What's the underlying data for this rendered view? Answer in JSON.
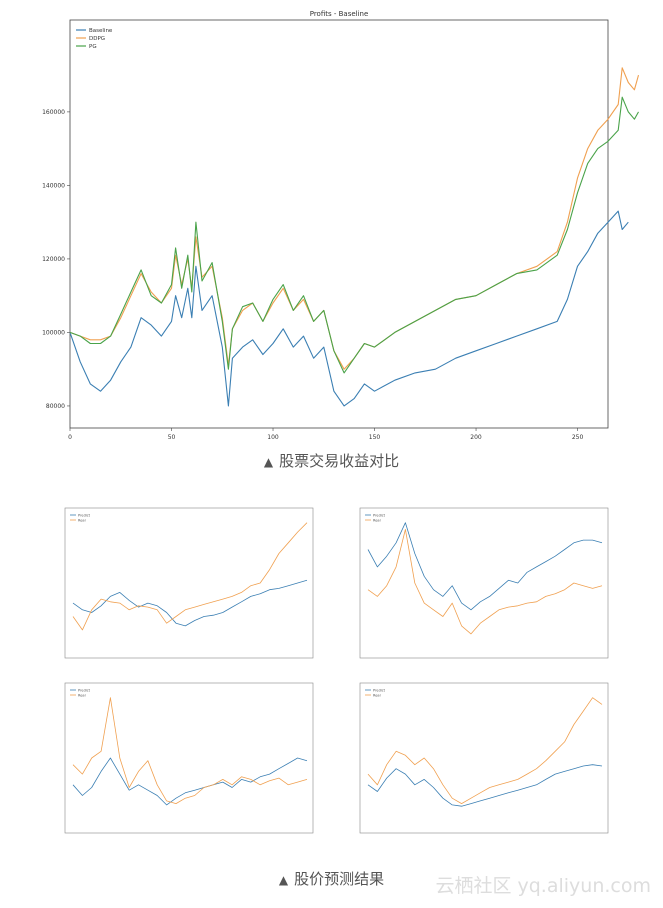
{
  "captions": {
    "first": "股票交易收益对比",
    "second": "股价预测结果",
    "triangle": "▲"
  },
  "watermark": "云栖社区 yq.aliyun.com",
  "colors": {
    "blue": "#3b7fb3",
    "orange": "#f0a050",
    "green": "#4aa34a"
  },
  "chart_data": [
    {
      "type": "line",
      "title": "Profits - Baseline",
      "xlim": [
        0,
        265
      ],
      "ylim": [
        74000,
        185000
      ],
      "xticks": [
        0,
        50,
        100,
        150,
        200,
        250
      ],
      "yticks": [
        80000,
        100000,
        120000,
        140000,
        160000
      ],
      "ytick_labels": [
        "80000",
        "100000",
        "120000",
        "140000",
        "160000"
      ],
      "legend": "top-left",
      "series": [
        {
          "name": "Baseline",
          "color": "blue",
          "points": [
            [
              0,
              100000
            ],
            [
              5,
              92000
            ],
            [
              10,
              86000
            ],
            [
              15,
              84000
            ],
            [
              20,
              87000
            ],
            [
              25,
              92000
            ],
            [
              30,
              96000
            ],
            [
              35,
              104000
            ],
            [
              40,
              102000
            ],
            [
              45,
              99000
            ],
            [
              50,
              103000
            ],
            [
              52,
              110000
            ],
            [
              55,
              104000
            ],
            [
              58,
              112000
            ],
            [
              60,
              104000
            ],
            [
              62,
              118000
            ],
            [
              65,
              106000
            ],
            [
              70,
              110000
            ],
            [
              75,
              96000
            ],
            [
              78,
              80000
            ],
            [
              80,
              93000
            ],
            [
              85,
              96000
            ],
            [
              90,
              98000
            ],
            [
              95,
              94000
            ],
            [
              100,
              97000
            ],
            [
              105,
              101000
            ],
            [
              110,
              96000
            ],
            [
              115,
              99000
            ],
            [
              120,
              93000
            ],
            [
              125,
              96000
            ],
            [
              130,
              84000
            ],
            [
              135,
              80000
            ],
            [
              140,
              82000
            ],
            [
              145,
              86000
            ],
            [
              150,
              84000
            ],
            [
              160,
              87000
            ],
            [
              170,
              89000
            ],
            [
              180,
              90000
            ],
            [
              190,
              93000
            ],
            [
              200,
              95000
            ],
            [
              210,
              97000
            ],
            [
              220,
              99000
            ],
            [
              230,
              101000
            ],
            [
              240,
              103000
            ],
            [
              245,
              109000
            ],
            [
              250,
              118000
            ],
            [
              255,
              122000
            ],
            [
              260,
              127000
            ],
            [
              265,
              130000
            ],
            [
              270,
              133000
            ],
            [
              272,
              128000
            ],
            [
              275,
              130000
            ]
          ]
        },
        {
          "name": "DDPG",
          "color": "orange",
          "points": [
            [
              0,
              100000
            ],
            [
              5,
              99000
            ],
            [
              10,
              98000
            ],
            [
              15,
              98000
            ],
            [
              20,
              99000
            ],
            [
              25,
              104000
            ],
            [
              30,
              110000
            ],
            [
              35,
              116000
            ],
            [
              40,
              111000
            ],
            [
              45,
              108000
            ],
            [
              50,
              112000
            ],
            [
              52,
              121000
            ],
            [
              55,
              113000
            ],
            [
              58,
              120000
            ],
            [
              60,
              112000
            ],
            [
              62,
              126000
            ],
            [
              65,
              115000
            ],
            [
              70,
              118000
            ],
            [
              75,
              104000
            ],
            [
              78,
              91000
            ],
            [
              80,
              101000
            ],
            [
              85,
              106000
            ],
            [
              90,
              108000
            ],
            [
              95,
              103000
            ],
            [
              100,
              108000
            ],
            [
              105,
              112000
            ],
            [
              110,
              106000
            ],
            [
              115,
              109000
            ],
            [
              120,
              103000
            ],
            [
              125,
              106000
            ],
            [
              130,
              95000
            ],
            [
              135,
              90000
            ],
            [
              140,
              93000
            ],
            [
              145,
              97000
            ],
            [
              150,
              96000
            ],
            [
              160,
              100000
            ],
            [
              170,
              103000
            ],
            [
              180,
              106000
            ],
            [
              190,
              109000
            ],
            [
              200,
              110000
            ],
            [
              210,
              113000
            ],
            [
              220,
              116000
            ],
            [
              230,
              118000
            ],
            [
              240,
              122000
            ],
            [
              245,
              130000
            ],
            [
              250,
              142000
            ],
            [
              255,
              150000
            ],
            [
              260,
              155000
            ],
            [
              265,
              158000
            ],
            [
              270,
              162000
            ],
            [
              272,
              172000
            ],
            [
              275,
              168000
            ],
            [
              278,
              166000
            ],
            [
              280,
              170000
            ]
          ]
        },
        {
          "name": "PG",
          "color": "green",
          "points": [
            [
              0,
              100000
            ],
            [
              5,
              99000
            ],
            [
              10,
              97000
            ],
            [
              15,
              97000
            ],
            [
              20,
              99000
            ],
            [
              25,
              105000
            ],
            [
              30,
              111000
            ],
            [
              35,
              117000
            ],
            [
              40,
              110000
            ],
            [
              45,
              108000
            ],
            [
              50,
              113000
            ],
            [
              52,
              123000
            ],
            [
              55,
              112000
            ],
            [
              58,
              121000
            ],
            [
              60,
              111000
            ],
            [
              62,
              130000
            ],
            [
              65,
              114000
            ],
            [
              70,
              119000
            ],
            [
              75,
              103000
            ],
            [
              78,
              90000
            ],
            [
              80,
              101000
            ],
            [
              85,
              107000
            ],
            [
              90,
              108000
            ],
            [
              95,
              103000
            ],
            [
              100,
              109000
            ],
            [
              105,
              113000
            ],
            [
              110,
              106000
            ],
            [
              115,
              110000
            ],
            [
              120,
              103000
            ],
            [
              125,
              106000
            ],
            [
              130,
              95000
            ],
            [
              135,
              89000
            ],
            [
              140,
              93000
            ],
            [
              145,
              97000
            ],
            [
              150,
              96000
            ],
            [
              160,
              100000
            ],
            [
              170,
              103000
            ],
            [
              180,
              106000
            ],
            [
              190,
              109000
            ],
            [
              200,
              110000
            ],
            [
              210,
              113000
            ],
            [
              220,
              116000
            ],
            [
              230,
              117000
            ],
            [
              240,
              121000
            ],
            [
              245,
              128000
            ],
            [
              250,
              138000
            ],
            [
              255,
              146000
            ],
            [
              260,
              150000
            ],
            [
              265,
              152000
            ],
            [
              270,
              155000
            ],
            [
              272,
              164000
            ],
            [
              275,
              160000
            ],
            [
              278,
              158000
            ],
            [
              280,
              160000
            ]
          ]
        }
      ]
    },
    {
      "type": "line",
      "legend": "top-left",
      "xlim": [
        0,
        265
      ],
      "ylim": [
        0,
        1
      ],
      "series": [
        {
          "name": "Predict",
          "color": "blue",
          "values": [
            0.35,
            0.3,
            0.28,
            0.33,
            0.4,
            0.43,
            0.37,
            0.32,
            0.35,
            0.33,
            0.28,
            0.2,
            0.18,
            0.22,
            0.25,
            0.26,
            0.28,
            0.32,
            0.36,
            0.4,
            0.42,
            0.45,
            0.46,
            0.48,
            0.5,
            0.52
          ]
        },
        {
          "name": "Real",
          "color": "orange",
          "values": [
            0.25,
            0.15,
            0.3,
            0.38,
            0.36,
            0.35,
            0.3,
            0.33,
            0.32,
            0.3,
            0.2,
            0.25,
            0.3,
            0.32,
            0.34,
            0.36,
            0.38,
            0.4,
            0.43,
            0.48,
            0.5,
            0.6,
            0.72,
            0.8,
            0.88,
            0.95
          ]
        }
      ]
    },
    {
      "type": "line",
      "legend": "top-left",
      "xlim": [
        0,
        265
      ],
      "ylim": [
        0,
        1
      ],
      "series": [
        {
          "name": "Predict",
          "color": "blue",
          "values": [
            0.75,
            0.62,
            0.7,
            0.8,
            0.95,
            0.72,
            0.55,
            0.45,
            0.4,
            0.48,
            0.35,
            0.3,
            0.36,
            0.4,
            0.46,
            0.52,
            0.5,
            0.58,
            0.62,
            0.66,
            0.7,
            0.75,
            0.8,
            0.82,
            0.82,
            0.8
          ]
        },
        {
          "name": "Real",
          "color": "orange",
          "values": [
            0.45,
            0.4,
            0.48,
            0.62,
            0.9,
            0.5,
            0.35,
            0.3,
            0.25,
            0.35,
            0.18,
            0.12,
            0.2,
            0.25,
            0.3,
            0.32,
            0.33,
            0.35,
            0.36,
            0.4,
            0.42,
            0.45,
            0.5,
            0.48,
            0.46,
            0.48
          ]
        }
      ]
    },
    {
      "type": "line",
      "legend": "top-left",
      "xlim": [
        0,
        265
      ],
      "ylim": [
        0,
        1
      ],
      "series": [
        {
          "name": "Predict",
          "color": "blue",
          "values": [
            0.3,
            0.22,
            0.28,
            0.4,
            0.5,
            0.38,
            0.26,
            0.3,
            0.26,
            0.22,
            0.15,
            0.2,
            0.24,
            0.26,
            0.28,
            0.3,
            0.32,
            0.28,
            0.34,
            0.32,
            0.36,
            0.38,
            0.42,
            0.46,
            0.5,
            0.48
          ]
        },
        {
          "name": "Real",
          "color": "orange",
          "values": [
            0.45,
            0.38,
            0.5,
            0.55,
            0.95,
            0.5,
            0.28,
            0.4,
            0.48,
            0.3,
            0.18,
            0.16,
            0.2,
            0.22,
            0.28,
            0.3,
            0.34,
            0.3,
            0.36,
            0.34,
            0.3,
            0.33,
            0.35,
            0.3,
            0.32,
            0.34
          ]
        }
      ]
    },
    {
      "type": "line",
      "legend": "top-left",
      "xlim": [
        0,
        265
      ],
      "ylim": [
        0,
        1
      ],
      "series": [
        {
          "name": "Predict",
          "color": "blue",
          "values": [
            0.3,
            0.25,
            0.35,
            0.42,
            0.38,
            0.3,
            0.34,
            0.28,
            0.2,
            0.15,
            0.14,
            0.16,
            0.18,
            0.2,
            0.22,
            0.24,
            0.26,
            0.28,
            0.3,
            0.34,
            0.38,
            0.4,
            0.42,
            0.44,
            0.45,
            0.44
          ]
        },
        {
          "name": "Real",
          "color": "orange",
          "values": [
            0.38,
            0.3,
            0.45,
            0.55,
            0.52,
            0.45,
            0.5,
            0.42,
            0.3,
            0.2,
            0.16,
            0.2,
            0.24,
            0.28,
            0.3,
            0.32,
            0.34,
            0.38,
            0.42,
            0.48,
            0.55,
            0.62,
            0.75,
            0.85,
            0.95,
            0.9
          ]
        }
      ]
    }
  ]
}
